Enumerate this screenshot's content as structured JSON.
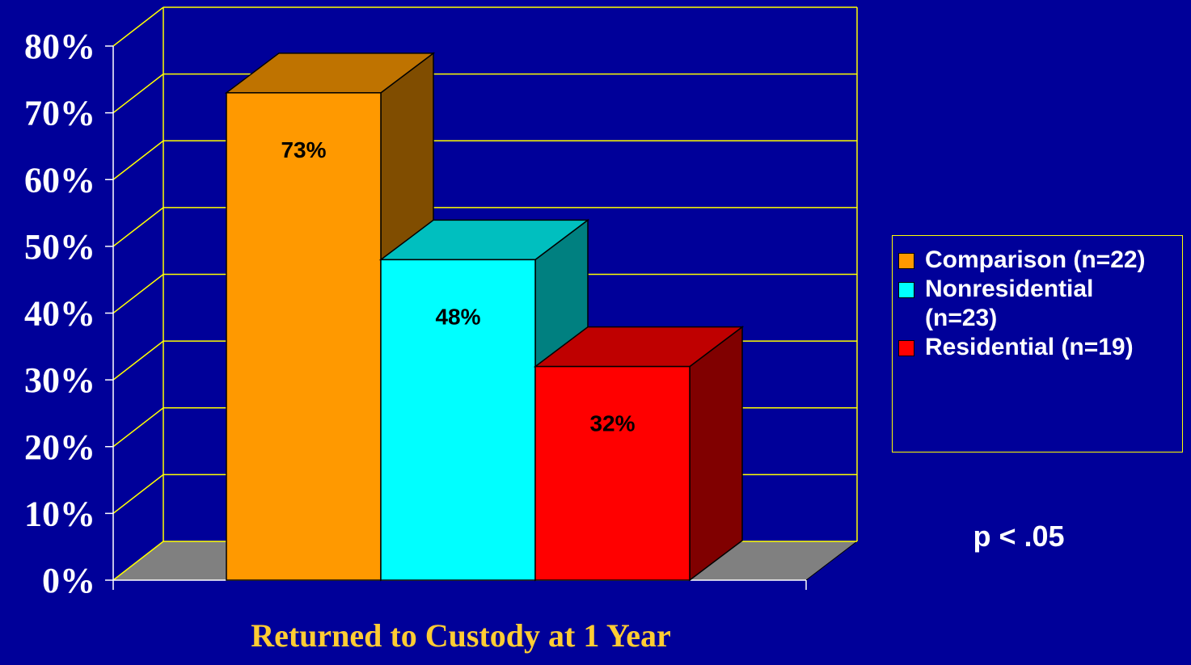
{
  "chart_data": {
    "type": "bar3d",
    "xlabel": "Returned to Custody at 1 Year",
    "annotation": "p < .05",
    "series": [
      {
        "name": "Comparison (n=22)",
        "color": "#ff9900",
        "values": [
          73
        ],
        "value_labels": [
          "73%"
        ]
      },
      {
        "name": "Nonresidential (n=23)",
        "color": "#00ffff",
        "values": [
          48
        ],
        "value_labels": [
          "48%"
        ]
      },
      {
        "name": "Residential (n=19)",
        "color": "#ff0000",
        "values": [
          32
        ],
        "value_labels": [
          "32%"
        ]
      }
    ],
    "ylim": [
      0,
      80
    ],
    "yticks": [
      {
        "value": 0,
        "label": "0%"
      },
      {
        "value": 10,
        "label": "10%"
      },
      {
        "value": 20,
        "label": "20%"
      },
      {
        "value": 30,
        "label": "30%"
      },
      {
        "value": 40,
        "label": "40%"
      },
      {
        "value": 50,
        "label": "50%"
      },
      {
        "value": 60,
        "label": "60%"
      },
      {
        "value": 70,
        "label": "70%"
      },
      {
        "value": 80,
        "label": "80%"
      }
    ],
    "grid": true,
    "legend": "right"
  }
}
